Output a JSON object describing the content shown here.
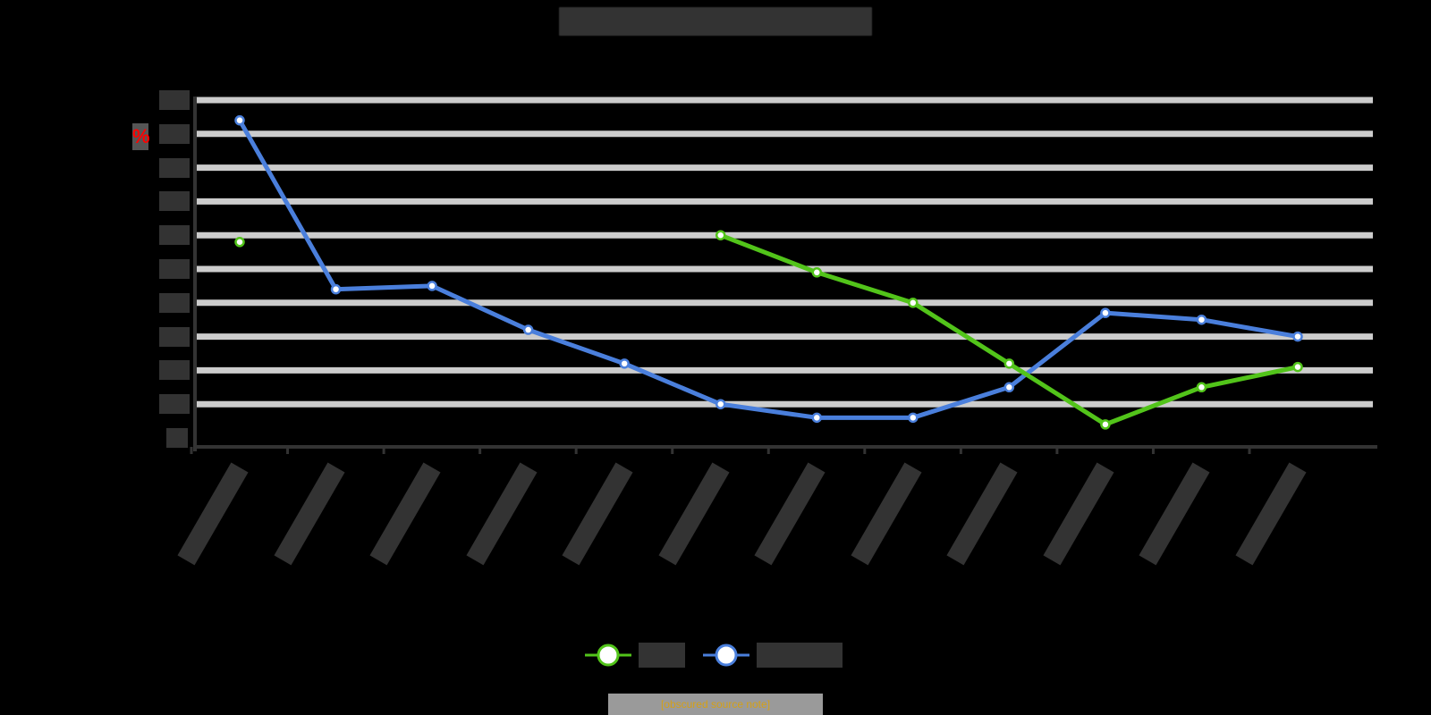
{
  "title": "[obscured chart title]",
  "unit_icon": "%",
  "footer": "[obscured source note]",
  "colors": {
    "series_a": "#52c41a",
    "series_b": "#4a7fdc",
    "grid": "#cccccc",
    "axis": "#333333",
    "background": "#000000",
    "footer_text": "#d4a017"
  },
  "legend": [
    {
      "name": "[obscured series A]",
      "color": "#52c41a"
    },
    {
      "name": "[obscured series B]",
      "color": "#4a7fdc"
    }
  ],
  "chart_data": {
    "type": "line",
    "title": "[obscured]",
    "xlabel": "",
    "ylabel": "",
    "categories": [
      "c1",
      "c2",
      "c3",
      "c4",
      "c5",
      "c6",
      "c7",
      "c8",
      "c9",
      "c10",
      "c11",
      "c12"
    ],
    "y_ticks_count": 11,
    "ylim": [
      0,
      10
    ],
    "grid": true,
    "legend_position": "bottom",
    "series": [
      {
        "name": "[obscured series A]",
        "color": "#52c41a",
        "values": [
          5.8,
          null,
          null,
          null,
          null,
          6.0,
          4.9,
          4.0,
          2.2,
          0.4,
          1.5,
          2.1
        ]
      },
      {
        "name": "[obscured series B]",
        "color": "#4a7fdc",
        "values": [
          9.4,
          4.4,
          4.5,
          3.2,
          2.2,
          1.0,
          0.6,
          0.6,
          1.5,
          3.7,
          3.5,
          3.0
        ]
      }
    ],
    "note": "All text labels (title, ticks, data labels, legend) are blurred/obscured in the source; values are estimated on a normalized 0-10 gridline scale."
  }
}
